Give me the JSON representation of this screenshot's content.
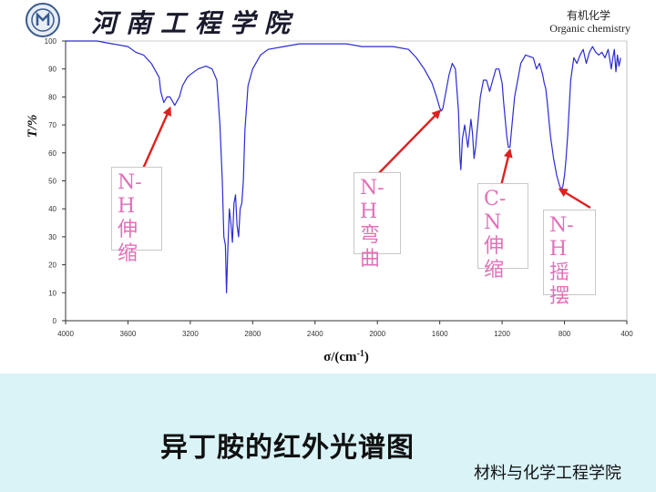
{
  "header": {
    "school_name": "河南工程学院",
    "course_cn": "有机化学",
    "course_en": "Organic chemistry"
  },
  "chart_data": {
    "type": "line",
    "title": "异丁胺的红外光谱图",
    "xlabel": "σ/(cm-1)",
    "ylabel": "T/%",
    "xlim": [
      4000,
      400
    ],
    "ylim": [
      0,
      100
    ],
    "x_ticks": [
      4000,
      3600,
      3200,
      2800,
      2400,
      2000,
      1600,
      1200,
      800,
      400
    ],
    "y_ticks": [
      0,
      10,
      20,
      30,
      40,
      50,
      60,
      70,
      80,
      90,
      100
    ],
    "grid": false,
    "series": [
      {
        "color": "#2b2bd6",
        "points": [
          [
            4000,
            100
          ],
          [
            3800,
            100
          ],
          [
            3700,
            99
          ],
          [
            3600,
            98
          ],
          [
            3550,
            96
          ],
          [
            3500,
            95
          ],
          [
            3450,
            92
          ],
          [
            3400,
            87
          ],
          [
            3390,
            82
          ],
          [
            3370,
            78
          ],
          [
            3350,
            80
          ],
          [
            3330,
            80
          ],
          [
            3300,
            77
          ],
          [
            3270,
            80
          ],
          [
            3250,
            84
          ],
          [
            3220,
            87
          ],
          [
            3200,
            88
          ],
          [
            3150,
            90
          ],
          [
            3100,
            91
          ],
          [
            3060,
            90
          ],
          [
            3030,
            86
          ],
          [
            3010,
            70
          ],
          [
            2995,
            50
          ],
          [
            2985,
            30
          ],
          [
            2975,
            27
          ],
          [
            2968,
            10
          ],
          [
            2960,
            25
          ],
          [
            2950,
            40
          ],
          [
            2940,
            35
          ],
          [
            2930,
            28
          ],
          [
            2920,
            42
          ],
          [
            2910,
            45
          ],
          [
            2900,
            34
          ],
          [
            2890,
            30
          ],
          [
            2880,
            40
          ],
          [
            2870,
            42
          ],
          [
            2860,
            50
          ],
          [
            2850,
            68
          ],
          [
            2830,
            84
          ],
          [
            2800,
            90
          ],
          [
            2750,
            95
          ],
          [
            2700,
            97
          ],
          [
            2600,
            98
          ],
          [
            2500,
            99
          ],
          [
            2400,
            99
          ],
          [
            2300,
            99
          ],
          [
            2200,
            99
          ],
          [
            2100,
            98
          ],
          [
            2000,
            98
          ],
          [
            1900,
            98
          ],
          [
            1800,
            97
          ],
          [
            1750,
            94
          ],
          [
            1700,
            90
          ],
          [
            1650,
            85
          ],
          [
            1620,
            80
          ],
          [
            1600,
            76
          ],
          [
            1590,
            75
          ],
          [
            1580,
            76
          ],
          [
            1560,
            82
          ],
          [
            1540,
            88
          ],
          [
            1520,
            92
          ],
          [
            1500,
            90
          ],
          [
            1480,
            75
          ],
          [
            1470,
            58
          ],
          [
            1465,
            54
          ],
          [
            1455,
            65
          ],
          [
            1440,
            70
          ],
          [
            1420,
            62
          ],
          [
            1400,
            72
          ],
          [
            1390,
            67
          ],
          [
            1380,
            58
          ],
          [
            1370,
            62
          ],
          [
            1360,
            68
          ],
          [
            1340,
            80
          ],
          [
            1320,
            86
          ],
          [
            1300,
            86
          ],
          [
            1280,
            82
          ],
          [
            1260,
            86
          ],
          [
            1240,
            90
          ],
          [
            1220,
            90
          ],
          [
            1200,
            85
          ],
          [
            1190,
            78
          ],
          [
            1180,
            72
          ],
          [
            1170,
            66
          ],
          [
            1160,
            62
          ],
          [
            1150,
            62
          ],
          [
            1140,
            68
          ],
          [
            1130,
            74
          ],
          [
            1120,
            80
          ],
          [
            1100,
            86
          ],
          [
            1080,
            92
          ],
          [
            1050,
            95
          ],
          [
            1000,
            94
          ],
          [
            980,
            90
          ],
          [
            960,
            92
          ],
          [
            940,
            88
          ],
          [
            930,
            85
          ],
          [
            920,
            83
          ],
          [
            910,
            78
          ],
          [
            900,
            72
          ],
          [
            890,
            66
          ],
          [
            880,
            62
          ],
          [
            870,
            58
          ],
          [
            860,
            55
          ],
          [
            850,
            52
          ],
          [
            840,
            50
          ],
          [
            830,
            48
          ],
          [
            820,
            47
          ],
          [
            810,
            48
          ],
          [
            800,
            52
          ],
          [
            790,
            58
          ],
          [
            780,
            66
          ],
          [
            770,
            76
          ],
          [
            760,
            86
          ],
          [
            740,
            94
          ],
          [
            720,
            92
          ],
          [
            700,
            95
          ],
          [
            680,
            97
          ],
          [
            660,
            92
          ],
          [
            640,
            96
          ],
          [
            620,
            98
          ],
          [
            600,
            96
          ],
          [
            580,
            95
          ],
          [
            560,
            96
          ],
          [
            540,
            94
          ],
          [
            520,
            97
          ],
          [
            500,
            90
          ],
          [
            490,
            94
          ],
          [
            480,
            97
          ],
          [
            470,
            89
          ],
          [
            460,
            95
          ],
          [
            450,
            91
          ],
          [
            440,
            94
          ]
        ]
      }
    ],
    "annotations": [
      {
        "lines": [
          "N-H",
          "伸",
          "缩"
        ],
        "target_x": 3330,
        "target_y": 77
      },
      {
        "lines": [
          "N-H",
          "弯",
          "曲"
        ],
        "target_x": 1600,
        "target_y": 76
      },
      {
        "lines": [
          "C-N",
          "伸",
          "缩"
        ],
        "target_x": 1150,
        "target_y": 62
      },
      {
        "lines": [
          "N-H",
          "摇",
          "摆"
        ],
        "target_x": 830,
        "target_y": 48
      }
    ]
  },
  "footer": {
    "department": "材料与化学工程学院"
  }
}
